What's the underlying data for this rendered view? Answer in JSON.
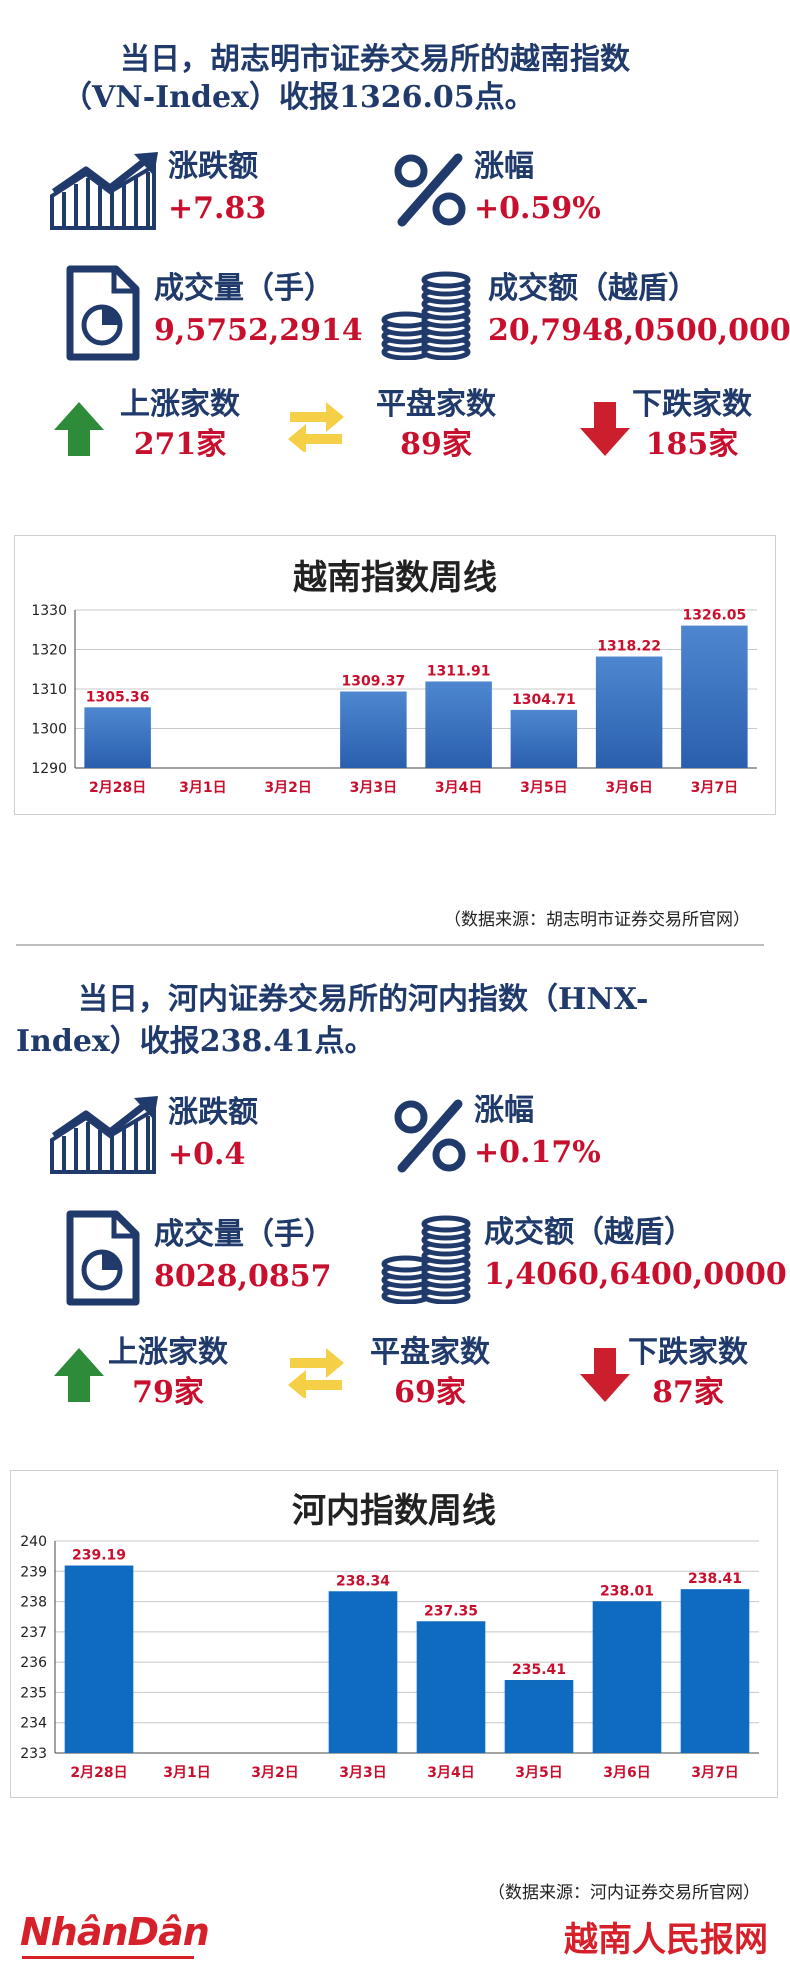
{
  "section1": {
    "headline_line1": "当日，胡志明市证券交易所的越南指数",
    "headline_line2": "（VN-Index）收报1326.05点。",
    "change_label": "涨跌额",
    "change_value": "+7.83",
    "pct_label": "涨幅",
    "pct_value": "+0.59%",
    "volume_label": "成交量（手）",
    "volume_value": "9,5752,2914",
    "turnover_label": "成交额（越盾）",
    "turnover_value": "20,7948,0500,0000",
    "up_label": "上涨家数",
    "up_value": "271家",
    "flat_label": "平盘家数",
    "flat_value": "89家",
    "down_label": "下跌家数",
    "down_value": "185家",
    "source": "（数据来源：胡志明市证券交易所官网）"
  },
  "section2": {
    "headline_line1": "当日，河内证券交易所的河内指数（HNX-",
    "headline_line2": "Index）收报238.41点。",
    "change_label": "涨跌额",
    "change_value": "+0.4",
    "pct_label": "涨幅",
    "pct_value": "+0.17%",
    "volume_label": "成交量（手）",
    "volume_value": "8028,0857",
    "turnover_label": "成交额（越盾）",
    "turnover_value": "1,4060,6400,0000",
    "up_label": "上涨家数",
    "up_value": "79家",
    "flat_label": "平盘家数",
    "flat_value": "69家",
    "down_label": "下跌家数",
    "down_value": "87家",
    "source": "（数据来源：河内证券交易所官网）"
  },
  "colors": {
    "navy": "#1f3a6b",
    "red": "#c8102e",
    "up_green": "#2e8b3a",
    "flat_yellow": "#f5d046",
    "down_red": "#cc1f2d",
    "vn_bar": "#3b73c1",
    "hnx_bar": "#0f6bbf"
  },
  "icons": [
    "trend-chart-icon",
    "percent-icon",
    "document-pie-icon",
    "coin-stack-icon",
    "up-arrow-icon",
    "swap-arrows-icon",
    "down-arrow-icon"
  ],
  "footer": {
    "logo_left": "NhânDân",
    "logo_right": "越南人民报网"
  },
  "chart_data": [
    {
      "type": "bar",
      "title": "越南指数周线",
      "categories": [
        "2月28日",
        "3月1日",
        "3月2日",
        "3月3日",
        "3月4日",
        "3月5日",
        "3月6日",
        "3月7日"
      ],
      "values": [
        1305.36,
        null,
        null,
        1309.37,
        1311.91,
        1304.71,
        1318.22,
        1326.05
      ],
      "labels": [
        "1305.36",
        "",
        "",
        "1309.37",
        "1311.91",
        "1304.71",
        "1318.22",
        "1326.05"
      ],
      "ylim": [
        1290,
        1330
      ],
      "yticks": [
        1290,
        1300,
        1310,
        1320,
        1330
      ],
      "grid": true
    },
    {
      "type": "bar",
      "title": "河内指数周线",
      "categories": [
        "2月28日",
        "3月1日",
        "3月2日",
        "3月3日",
        "3月4日",
        "3月5日",
        "3月6日",
        "3月7日"
      ],
      "values": [
        239.19,
        null,
        null,
        238.34,
        237.35,
        235.41,
        238.01,
        238.41
      ],
      "labels": [
        "239.19",
        "",
        "",
        "238.34",
        "237.35",
        "235.41",
        "238.01",
        "238.41"
      ],
      "ylim": [
        233,
        240
      ],
      "yticks": [
        233,
        234,
        235,
        236,
        237,
        238,
        239,
        240
      ],
      "grid": true
    }
  ]
}
